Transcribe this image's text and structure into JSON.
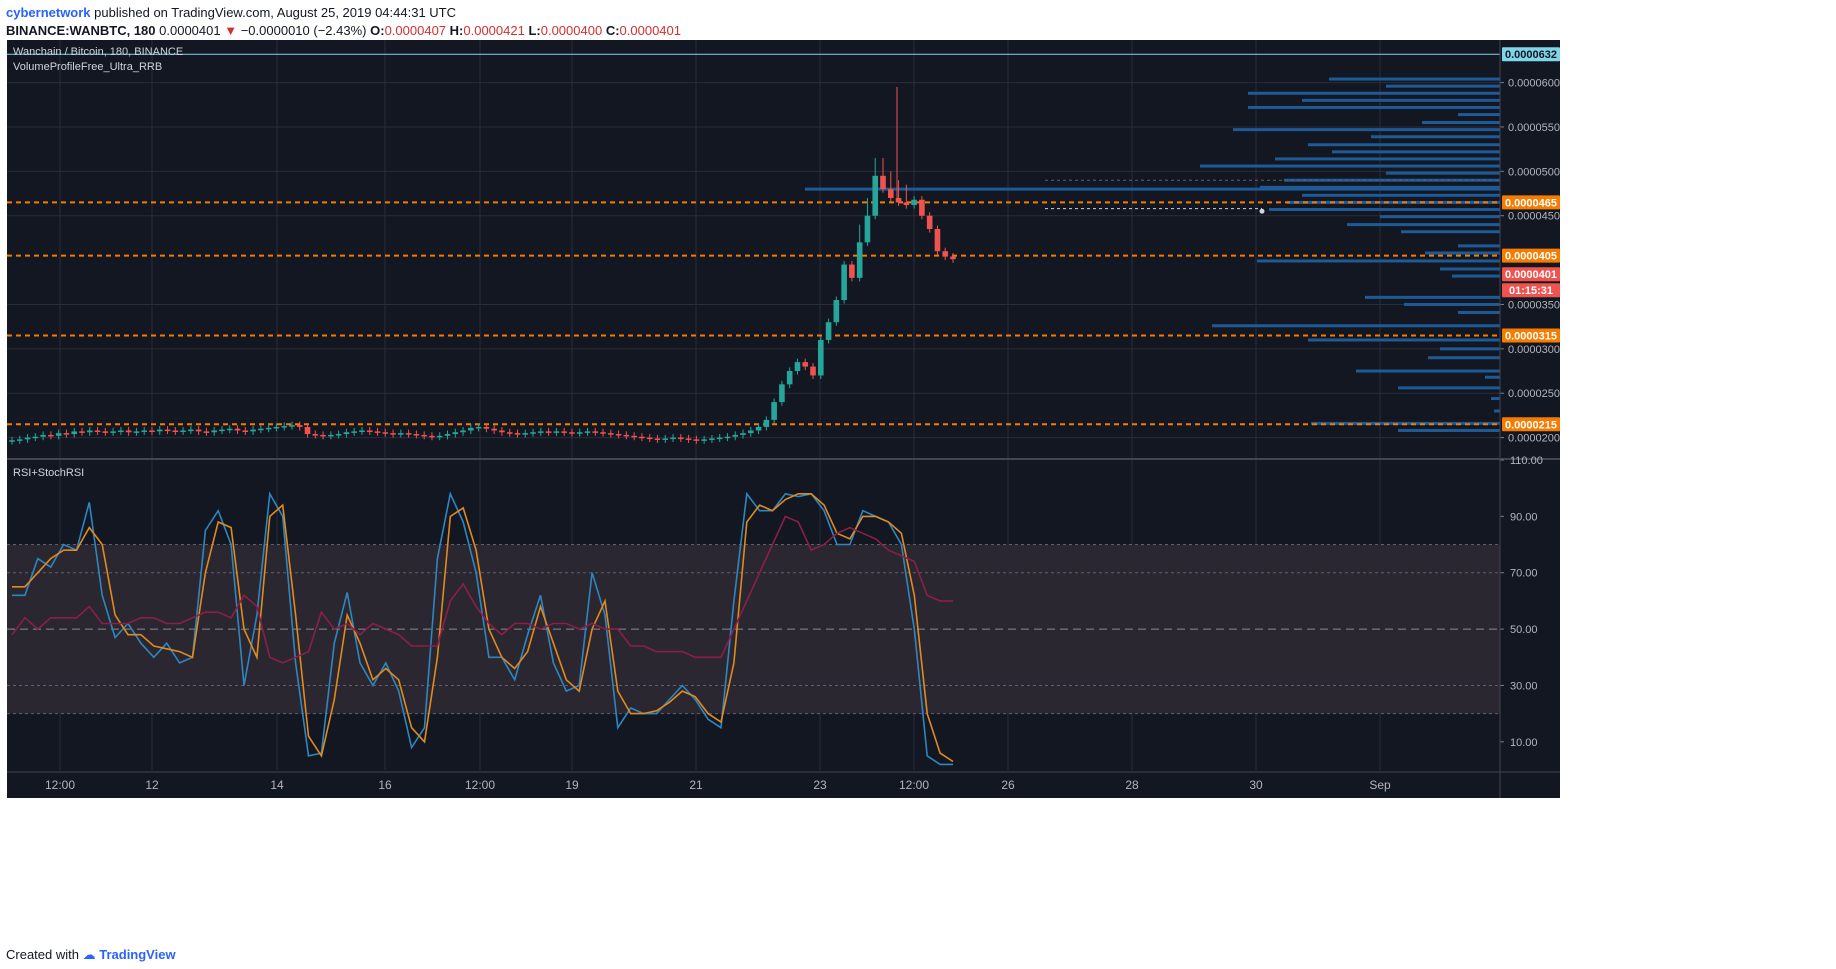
{
  "header": {
    "author": "cybernetwork",
    "published_text": "published on TradingView.com, August 25, 2019 04:44:31 UTC",
    "symbol": "BINANCE:WANBTC, 180",
    "last": "0.0000401",
    "change": "−0.0000010 (−2.43%)",
    "o_label": "O:",
    "o_value": "0.0000407",
    "h_label": "H:",
    "h_value": "0.0000421",
    "l_label": "L:",
    "l_value": "0.0000400",
    "c_label": "C:",
    "c_value": "0.0000401"
  },
  "footer": {
    "created_with": "Created with",
    "brand": "TradingView"
  },
  "colors": {
    "background": "#131722",
    "bull": "#26a69a",
    "bear": "#ef5350",
    "level_line": "#f57c00",
    "profile": "#1e5a96",
    "stoch_k": "#2e86c1",
    "stoch_d": "#e08a20",
    "rsi": "#8b1f47"
  },
  "chart_data": [
    {
      "type": "candlestick",
      "title": "Wanchain / Bitcoin, 180, BINANCE",
      "indicator": "VolumeProfileFree_Ultra_RRB",
      "y_ticks": [
        "0.0000200",
        "0.0000250",
        "0.0000300",
        "0.0000350",
        "0.0000450",
        "0.0000500",
        "0.0000550",
        "0.0000600"
      ],
      "x_ticks": [
        "12:00",
        "12",
        "14",
        "16",
        "12:00",
        "19",
        "21",
        "23",
        "12:00",
        "26",
        "28",
        "30",
        "Sep"
      ],
      "ylim": [
        1.77e-05,
        6.48e-05
      ],
      "price_labels": [
        {
          "text": "0.0000632",
          "kind": "top"
        },
        {
          "text": "0.0000465",
          "kind": "level"
        },
        {
          "text": "0.0000405",
          "kind": "level"
        },
        {
          "text": "0.0000401",
          "kind": "last"
        },
        {
          "text": "01:15:31",
          "kind": "countdown"
        },
        {
          "text": "0.0000315",
          "kind": "level"
        },
        {
          "text": "0.0000215",
          "kind": "level"
        }
      ],
      "levels": [
        4.65e-05,
        4.05e-05,
        3.15e-05,
        2.15e-05
      ],
      "top_line": 6.32e-05,
      "last_price": 4.01e-05,
      "candles_close": [
        1.97e-05,
        1.98e-05,
        2e-05,
        2.01e-05,
        2.03e-05,
        2.02e-05,
        2.05e-05,
        2.04e-05,
        2.07e-05,
        2.06e-05,
        2.08e-05,
        2.07e-05,
        2.06e-05,
        2.07e-05,
        2.08e-05,
        2.06e-05,
        2.07e-05,
        2.08e-05,
        2.07e-05,
        2.09e-05,
        2.08e-05,
        2.07e-05,
        2.08e-05,
        2.09e-05,
        2.07e-05,
        2.06e-05,
        2.08e-05,
        2.09e-05,
        2.1e-05,
        2.08e-05,
        2.07e-05,
        2.09e-05,
        2.1e-05,
        2.11e-05,
        2.12e-05,
        2.13e-05,
        2.14e-05,
        2.12e-05,
        2.04e-05,
        2.03e-05,
        2.02e-05,
        2.03e-05,
        2.04e-05,
        2.06e-05,
        2.07e-05,
        2.08e-05,
        2.07e-05,
        2.06e-05,
        2.05e-05,
        2.04e-05,
        2.05e-05,
        2.04e-05,
        2.03e-05,
        2.02e-05,
        2.01e-05,
        2.02e-05,
        2.04e-05,
        2.06e-05,
        2.08e-05,
        2.11e-05,
        2.12e-05,
        2.1e-05,
        2.08e-05,
        2.06e-05,
        2.05e-05,
        2.04e-05,
        2.05e-05,
        2.06e-05,
        2.07e-05,
        2.06e-05,
        2.07e-05,
        2.06e-05,
        2.05e-05,
        2.06e-05,
        2.07e-05,
        2.06e-05,
        2.05e-05,
        2.04e-05,
        2.03e-05,
        2.02e-05,
        2.01e-05,
        2e-05,
        1.99e-05,
        1.98e-05,
        1.99e-05,
        2e-05,
        1.99e-05,
        1.98e-05,
        1.97e-05,
        1.98e-05,
        1.99e-05,
        2e-05,
        2.01e-05,
        2.03e-05,
        2.05e-05,
        2.08e-05,
        2.12e-05,
        2.2e-05,
        2.4e-05,
        2.6e-05,
        2.75e-05,
        2.85e-05,
        2.8e-05,
        2.7e-05,
        3.1e-05,
        3.3e-05,
        3.55e-05,
        3.95e-05,
        3.8e-05,
        4.2e-05,
        4.5e-05,
        4.95e-05,
        4.8e-05,
        4.7e-05,
        4.65e-05,
        4.62e-05,
        4.68e-05,
        4.5e-05,
        4.35e-05,
        4.1e-05,
        4.04e-05,
        4.01e-05
      ],
      "volume_profile": [
        {
          "price": 6.04e-05,
          "len": 0.57
        },
        {
          "price": 5.96e-05,
          "len": 0.38
        },
        {
          "price": 5.88e-05,
          "len": 0.84
        },
        {
          "price": 5.8e-05,
          "len": 0.66
        },
        {
          "price": 5.72e-05,
          "len": 0.84
        },
        {
          "price": 5.64e-05,
          "len": 0.14
        },
        {
          "price": 5.55e-05,
          "len": 0.26
        },
        {
          "price": 5.47e-05,
          "len": 0.89
        },
        {
          "price": 5.39e-05,
          "len": 0.43
        },
        {
          "price": 5.3e-05,
          "len": 0.64
        },
        {
          "price": 5.22e-05,
          "len": 0.56
        },
        {
          "price": 5.14e-05,
          "len": 0.75
        },
        {
          "price": 5.06e-05,
          "len": 1.0
        },
        {
          "price": 4.98e-05,
          "len": 0.38
        },
        {
          "price": 4.9e-05,
          "len": 0.72
        },
        {
          "price": 4.82e-05,
          "len": 0.8
        },
        {
          "price": 4.73e-05,
          "len": 0.66
        },
        {
          "price": 4.65e-05,
          "len": 0.71
        },
        {
          "price": 4.57e-05,
          "len": 0.77
        },
        {
          "price": 4.49e-05,
          "len": 0.4
        },
        {
          "price": 4.4e-05,
          "len": 0.51
        },
        {
          "price": 4.32e-05,
          "len": 0.33
        },
        {
          "price": 4.16e-05,
          "len": 0.14
        },
        {
          "price": 4.08e-05,
          "len": 0.25
        },
        {
          "price": 3.99e-05,
          "len": 0.81
        },
        {
          "price": 3.9e-05,
          "len": 0.2
        },
        {
          "price": 3.82e-05,
          "len": 0.16
        },
        {
          "price": 3.58e-05,
          "len": 0.45
        },
        {
          "price": 3.5e-05,
          "len": 0.32
        },
        {
          "price": 3.41e-05,
          "len": 0.14
        },
        {
          "price": 3.26e-05,
          "len": 0.96
        },
        {
          "price": 3.1e-05,
          "len": 0.64
        },
        {
          "price": 3e-05,
          "len": 0.2
        },
        {
          "price": 2.9e-05,
          "len": 0.24
        },
        {
          "price": 2.75e-05,
          "len": 0.48
        },
        {
          "price": 2.68e-05,
          "len": 0.05
        },
        {
          "price": 2.56e-05,
          "len": 0.34
        },
        {
          "price": 2.44e-05,
          "len": 0.03
        },
        {
          "price": 2.3e-05,
          "len": 0.02
        },
        {
          "price": 2.16e-05,
          "len": 0.63
        },
        {
          "price": 2.08e-05,
          "len": 0.34
        }
      ]
    },
    {
      "type": "line",
      "title": "RSI+StochRSI",
      "y_ticks": [
        "110.00",
        "90.00",
        "70.00",
        "50.00",
        "30.00",
        "10.00"
      ],
      "ylim": [
        0,
        110
      ],
      "bands": {
        "upper": 80,
        "lower": 20,
        "mid": 50,
        "inner_upper": 70,
        "inner_lower": 30
      },
      "series": [
        {
          "role": "stoch_k",
          "values": [
            62,
            62,
            75,
            72,
            80,
            78,
            95,
            62,
            47,
            52,
            45,
            40,
            45,
            38,
            40,
            85,
            92,
            80,
            30,
            55,
            98,
            90,
            38,
            5,
            6,
            45,
            63,
            38,
            30,
            38,
            28,
            8,
            15,
            75,
            98,
            88,
            70,
            40,
            40,
            32,
            48,
            62,
            38,
            28,
            30,
            70,
            55,
            15,
            22,
            20,
            20,
            25,
            30,
            25,
            18,
            15,
            60,
            98,
            92,
            92,
            98,
            97,
            98,
            92,
            80,
            80,
            92,
            90,
            88,
            80,
            50,
            5,
            2,
            2
          ]
        },
        {
          "role": "stoch_d",
          "values": [
            65,
            65,
            70,
            75,
            78,
            78,
            86,
            80,
            55,
            48,
            48,
            44,
            43,
            42,
            40,
            70,
            88,
            86,
            50,
            40,
            90,
            94,
            55,
            12,
            5,
            25,
            55,
            45,
            32,
            36,
            32,
            15,
            10,
            40,
            90,
            93,
            78,
            50,
            40,
            36,
            42,
            58,
            45,
            32,
            28,
            50,
            60,
            28,
            20,
            20,
            21,
            24,
            28,
            26,
            20,
            17,
            38,
            88,
            94,
            92,
            96,
            98,
            98,
            94,
            84,
            82,
            90,
            90,
            88,
            84,
            62,
            20,
            6,
            3
          ]
        },
        {
          "role": "rsi",
          "values": [
            48,
            54,
            50,
            54,
            54,
            54,
            58,
            52,
            52,
            52,
            54,
            54,
            52,
            52,
            54,
            56,
            56,
            54,
            62,
            58,
            40,
            38,
            40,
            42,
            56,
            50,
            52,
            48,
            52,
            50,
            48,
            44,
            44,
            44,
            60,
            66,
            58,
            52,
            48,
            52,
            52,
            50,
            52,
            52,
            50,
            52,
            50,
            50,
            44,
            44,
            42,
            42,
            42,
            40,
            40,
            40,
            50,
            60,
            70,
            80,
            90,
            88,
            78,
            80,
            84,
            86,
            84,
            82,
            78,
            76,
            74,
            62,
            60,
            60
          ]
        }
      ]
    }
  ]
}
